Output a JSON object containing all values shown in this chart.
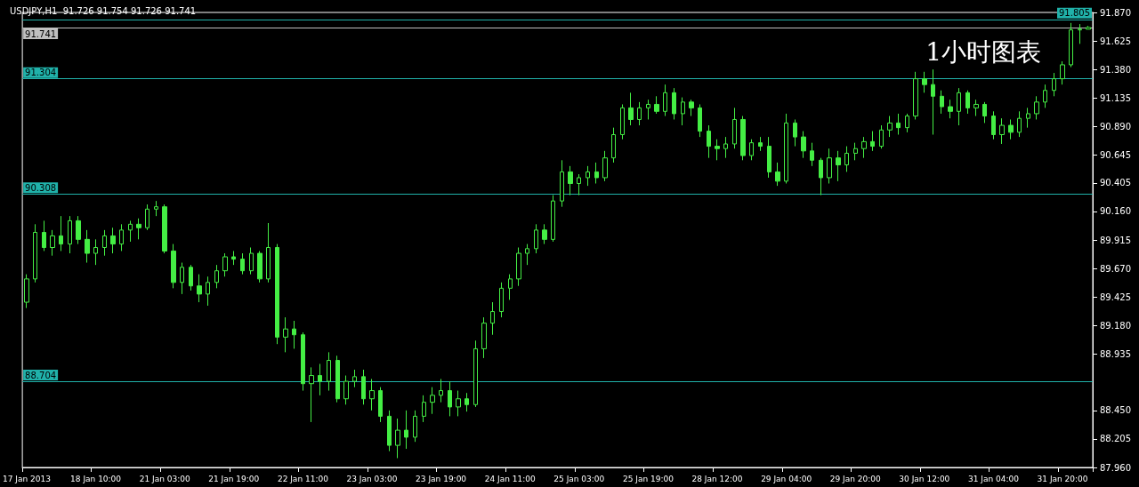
{
  "chart_data": {
    "type": "candlestick",
    "title": "USDJPY,H1  91.726 91.754 91.726 91.741",
    "annotations": [
      "1小时图表"
    ],
    "color": "#44ee44",
    "categories": [
      "17 Jan 2013",
      null,
      null,
      null,
      null,
      null,
      null,
      null,
      "18 Jan 10:00",
      null,
      null,
      null,
      null,
      null,
      null,
      null,
      "21 Jan 03:00",
      null,
      null,
      null,
      null,
      null,
      null,
      null,
      "21 Jan 19:00",
      null,
      null,
      null,
      null,
      null,
      null,
      null,
      "22 Jan 11:00",
      null,
      null,
      null,
      null,
      null,
      null,
      null,
      "23 Jan 03:00",
      null,
      null,
      null,
      null,
      null,
      null,
      null,
      "23 Jan 19:00",
      null,
      null,
      null,
      null,
      null,
      null,
      null,
      "24 Jan 11:00",
      null,
      null,
      null,
      null,
      null,
      null,
      null,
      "25 Jan 03:00",
      null,
      null,
      null,
      null,
      null,
      null,
      null,
      "25 Jan 19:00",
      null,
      null,
      null,
      null,
      null,
      null,
      null,
      "28 Jan 12:00",
      null,
      null,
      null,
      null,
      null,
      null,
      null,
      "29 Jan 04:00",
      null,
      null,
      null,
      null,
      null,
      null,
      null,
      "29 Jan 20:00",
      null,
      null,
      null,
      null,
      null,
      null,
      null,
      "30 Jan 12:00",
      null,
      null,
      null,
      null,
      null,
      null,
      null,
      "31 Jan 04:00",
      null,
      null,
      null,
      null,
      null,
      null,
      null,
      "31 Jan 20:00",
      null,
      null,
      null
    ],
    "ohlc": [
      [
        89.38,
        89.62,
        89.33,
        89.58
      ],
      [
        89.58,
        90.05,
        89.55,
        89.98
      ],
      [
        89.98,
        90.08,
        89.82,
        89.85
      ],
      [
        89.85,
        90.0,
        89.78,
        89.95
      ],
      [
        89.95,
        90.12,
        89.82,
        89.88
      ],
      [
        89.88,
        90.12,
        89.8,
        90.08
      ],
      [
        90.08,
        90.12,
        89.88,
        89.92
      ],
      [
        89.92,
        90.0,
        89.72,
        89.8
      ],
      [
        89.8,
        89.92,
        89.7,
        89.85
      ],
      [
        89.85,
        90.0,
        89.78,
        89.95
      ],
      [
        89.95,
        90.02,
        89.8,
        89.88
      ],
      [
        89.88,
        90.05,
        89.82,
        90.0
      ],
      [
        90.0,
        90.08,
        89.9,
        90.05
      ],
      [
        90.05,
        90.1,
        89.92,
        90.02
      ],
      [
        90.02,
        90.22,
        90.0,
        90.18
      ],
      [
        90.18,
        90.25,
        90.12,
        90.2
      ],
      [
        90.2,
        90.22,
        89.8,
        89.82
      ],
      [
        89.82,
        89.88,
        89.5,
        89.55
      ],
      [
        89.55,
        89.72,
        89.45,
        89.68
      ],
      [
        89.68,
        89.7,
        89.48,
        89.52
      ],
      [
        89.52,
        89.62,
        89.38,
        89.45
      ],
      [
        89.45,
        89.6,
        89.35,
        89.55
      ],
      [
        89.55,
        89.7,
        89.5,
        89.65
      ],
      [
        89.65,
        89.8,
        89.6,
        89.77
      ],
      [
        89.77,
        89.82,
        89.7,
        89.75
      ],
      [
        89.75,
        89.8,
        89.62,
        89.65
      ],
      [
        89.65,
        89.85,
        89.62,
        89.8
      ],
      [
        89.8,
        89.82,
        89.55,
        89.58
      ],
      [
        89.58,
        90.06,
        89.55,
        89.85
      ],
      [
        89.85,
        89.88,
        89.02,
        89.08
      ],
      [
        89.08,
        89.25,
        88.95,
        89.15
      ],
      [
        89.15,
        89.22,
        88.98,
        89.1
      ],
      [
        89.1,
        89.12,
        88.62,
        88.68
      ],
      [
        88.68,
        88.82,
        88.35,
        88.75
      ],
      [
        88.75,
        88.85,
        88.58,
        88.7
      ],
      [
        88.7,
        88.95,
        88.62,
        88.88
      ],
      [
        88.88,
        88.92,
        88.52,
        88.55
      ],
      [
        88.55,
        88.75,
        88.5,
        88.7
      ],
      [
        88.7,
        88.8,
        88.65,
        88.74
      ],
      [
        88.74,
        88.8,
        88.5,
        88.55
      ],
      [
        88.55,
        88.72,
        88.45,
        88.62
      ],
      [
        88.62,
        88.65,
        88.35,
        88.4
      ],
      [
        88.4,
        88.45,
        88.1,
        88.15
      ],
      [
        88.15,
        88.38,
        88.04,
        88.28
      ],
      [
        88.28,
        88.45,
        88.12,
        88.22
      ],
      [
        88.22,
        88.45,
        88.18,
        88.4
      ],
      [
        88.4,
        88.58,
        88.35,
        88.52
      ],
      [
        88.52,
        88.65,
        88.42,
        88.58
      ],
      [
        88.58,
        88.72,
        88.52,
        88.62
      ],
      [
        88.62,
        88.7,
        88.4,
        88.48
      ],
      [
        88.48,
        88.62,
        88.4,
        88.55
      ],
      [
        88.55,
        88.6,
        88.44,
        88.5
      ],
      [
        88.5,
        89.05,
        88.48,
        88.98
      ],
      [
        88.98,
        89.25,
        88.9,
        89.2
      ],
      [
        89.2,
        89.38,
        89.1,
        89.3
      ],
      [
        89.3,
        89.55,
        89.25,
        89.5
      ],
      [
        89.5,
        89.62,
        89.4,
        89.58
      ],
      [
        89.58,
        89.85,
        89.52,
        89.8
      ],
      [
        89.8,
        89.88,
        89.7,
        89.84
      ],
      [
        89.84,
        90.05,
        89.8,
        90.0
      ],
      [
        90.0,
        90.05,
        89.88,
        89.92
      ],
      [
        89.92,
        90.3,
        89.9,
        90.25
      ],
      [
        90.25,
        90.6,
        90.2,
        90.5
      ],
      [
        90.5,
        90.55,
        90.3,
        90.4
      ],
      [
        90.4,
        90.48,
        90.3,
        90.45
      ],
      [
        90.45,
        90.55,
        90.38,
        90.5
      ],
      [
        90.5,
        90.58,
        90.4,
        90.45
      ],
      [
        90.45,
        90.68,
        90.42,
        90.62
      ],
      [
        90.62,
        90.88,
        90.58,
        90.82
      ],
      [
        90.82,
        91.08,
        90.78,
        91.05
      ],
      [
        91.05,
        91.18,
        90.9,
        90.95
      ],
      [
        90.95,
        91.1,
        90.9,
        91.05
      ],
      [
        91.05,
        91.12,
        90.95,
        91.08
      ],
      [
        91.08,
        91.15,
        91.0,
        91.02
      ],
      [
        91.02,
        91.25,
        90.98,
        91.18
      ],
      [
        91.18,
        91.22,
        90.95,
        91.0
      ],
      [
        91.0,
        91.14,
        90.9,
        91.1
      ],
      [
        91.1,
        91.12,
        90.98,
        91.05
      ],
      [
        91.05,
        91.08,
        90.8,
        90.85
      ],
      [
        90.85,
        90.9,
        90.62,
        90.72
      ],
      [
        90.72,
        90.78,
        90.6,
        90.7
      ],
      [
        90.7,
        90.8,
        90.62,
        90.74
      ],
      [
        90.74,
        91.05,
        90.7,
        90.95
      ],
      [
        90.95,
        90.98,
        90.6,
        90.64
      ],
      [
        90.64,
        90.78,
        90.6,
        90.75
      ],
      [
        90.75,
        90.8,
        90.68,
        90.72
      ],
      [
        90.72,
        90.8,
        90.45,
        90.5
      ],
      [
        90.5,
        90.58,
        90.38,
        90.42
      ],
      [
        90.42,
        91.0,
        90.4,
        90.92
      ],
      [
        90.92,
        90.95,
        90.72,
        90.8
      ],
      [
        90.8,
        90.85,
        90.62,
        90.68
      ],
      [
        90.68,
        90.75,
        90.55,
        90.6
      ],
      [
        90.6,
        90.62,
        90.3,
        90.45
      ],
      [
        90.45,
        90.7,
        90.4,
        90.62
      ],
      [
        90.62,
        90.68,
        90.42,
        90.56
      ],
      [
        90.56,
        90.72,
        90.5,
        90.66
      ],
      [
        90.66,
        90.75,
        90.6,
        90.7
      ],
      [
        90.7,
        90.8,
        90.62,
        90.76
      ],
      [
        90.76,
        90.85,
        90.68,
        90.72
      ],
      [
        90.72,
        90.9,
        90.7,
        90.86
      ],
      [
        90.86,
        90.98,
        90.8,
        90.92
      ],
      [
        90.92,
        91.0,
        90.82,
        90.88
      ],
      [
        90.88,
        91.0,
        90.84,
        90.98
      ],
      [
        90.98,
        91.36,
        90.95,
        91.3
      ],
      [
        91.3,
        91.36,
        91.18,
        91.25
      ],
      [
        91.25,
        91.38,
        90.82,
        91.15
      ],
      [
        91.15,
        91.2,
        91.0,
        91.06
      ],
      [
        91.06,
        91.12,
        90.96,
        91.02
      ],
      [
        91.02,
        91.22,
        90.9,
        91.18
      ],
      [
        91.18,
        91.2,
        91.0,
        91.05
      ],
      [
        91.05,
        91.12,
        90.98,
        91.08
      ],
      [
        91.08,
        91.1,
        90.92,
        90.98
      ],
      [
        90.98,
        91.02,
        90.78,
        90.82
      ],
      [
        90.82,
        90.96,
        90.74,
        90.9
      ],
      [
        90.9,
        90.95,
        90.78,
        90.84
      ],
      [
        90.84,
        91.02,
        90.8,
        90.96
      ],
      [
        90.96,
        91.05,
        90.88,
        91.0
      ],
      [
        91.0,
        91.15,
        90.95,
        91.1
      ],
      [
        91.1,
        91.25,
        91.05,
        91.2
      ],
      [
        91.2,
        91.35,
        91.15,
        91.3
      ],
      [
        91.3,
        91.45,
        91.25,
        91.42
      ],
      [
        91.42,
        91.78,
        91.4,
        91.72
      ],
      [
        91.72,
        91.77,
        91.6,
        91.726
      ],
      [
        91.726,
        91.754,
        91.726,
        91.741
      ]
    ],
    "ylim": [
      87.96,
      91.87
    ],
    "yticks": [
      {
        "value": 87.96,
        "label": "87.960"
      },
      {
        "value": 88.205,
        "label": "88.205"
      },
      {
        "value": 88.45,
        "label": "88.450"
      },
      {
        "value": 88.935,
        "label": "88.935"
      },
      {
        "value": 89.18,
        "label": "89.180"
      },
      {
        "value": 89.425,
        "label": "89.425"
      },
      {
        "value": 89.67,
        "label": "89.670"
      },
      {
        "value": 89.915,
        "label": "89.915"
      },
      {
        "value": 90.16,
        "label": "90.160"
      },
      {
        "value": 90.405,
        "label": "90.405"
      },
      {
        "value": 90.645,
        "label": "90.645"
      },
      {
        "value": 90.89,
        "label": "90.890"
      },
      {
        "value": 91.135,
        "label": "91.135"
      },
      {
        "value": 91.38,
        "label": "91.380"
      },
      {
        "value": 91.625,
        "label": "91.625"
      },
      {
        "value": 91.87,
        "label": "91.870"
      }
    ],
    "ref_lines": [
      {
        "axis": "y",
        "value": 91.805,
        "label": "91.805",
        "color": "#20b2aa"
      },
      {
        "axis": "y",
        "value": 91.741,
        "label": "91.741",
        "color": "#c0c0c0"
      },
      {
        "axis": "y",
        "value": 91.304,
        "label": "91.304",
        "color": "#20b2aa"
      },
      {
        "axis": "y",
        "value": 90.308,
        "label": "90.308",
        "color": "#20b2aa"
      },
      {
        "axis": "y",
        "value": 88.704,
        "label": "88.704",
        "color": "#20b2aa"
      }
    ],
    "grid": false
  }
}
